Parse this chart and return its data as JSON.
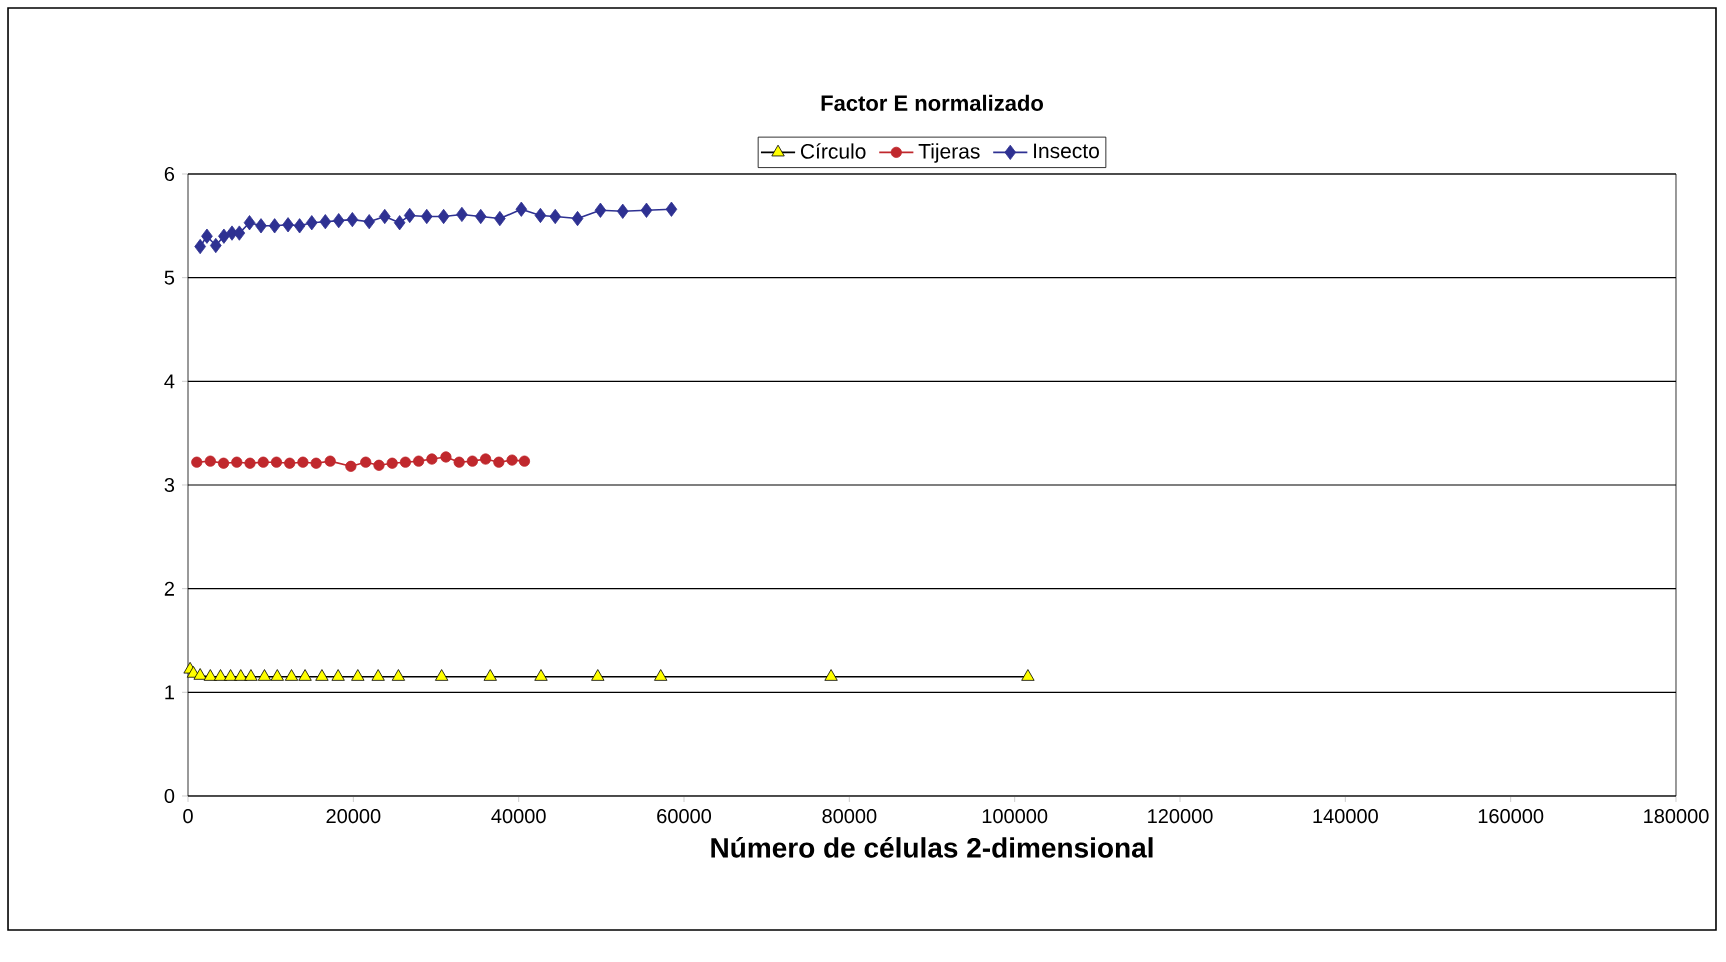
{
  "chart_data": {
    "type": "line",
    "title": "Factor E normalizado",
    "xlabel": "Número de células 2-dimensional",
    "xlim": [
      0,
      180000
    ],
    "xticks": [
      0,
      20000,
      40000,
      60000,
      80000,
      100000,
      120000,
      140000,
      160000,
      180000
    ],
    "ylim": [
      0,
      6
    ],
    "yticks": [
      0,
      1,
      2,
      3,
      4,
      5,
      6
    ],
    "grid": "y",
    "legend": "top",
    "series": [
      {
        "name": "Círculo",
        "color": "#ffff00",
        "marker": "triangle",
        "x": [
          250,
          660,
          1470,
          2700,
          3930,
          5150,
          6380,
          7610,
          9250,
          10800,
          12520,
          14160,
          16200,
          18160,
          20540,
          23000,
          25450,
          30680,
          36560,
          42700,
          49570,
          57180,
          77790,
          101600
        ],
        "values": [
          1.22,
          1.18,
          1.16,
          1.15,
          1.15,
          1.15,
          1.15,
          1.15,
          1.15,
          1.15,
          1.15,
          1.15,
          1.15,
          1.15,
          1.15,
          1.15,
          1.15,
          1.15,
          1.15,
          1.15,
          1.15,
          1.15,
          1.15,
          1.15
        ]
      },
      {
        "name": "Tijeras",
        "color": "#c0282d",
        "marker": "circle",
        "x": [
          1060,
          2700,
          4300,
          5900,
          7500,
          9100,
          10700,
          12300,
          13900,
          15500,
          17200,
          19700,
          21500,
          23100,
          24700,
          26300,
          27900,
          29500,
          31200,
          32800,
          34400,
          36000,
          37600,
          39200,
          40700
        ],
        "values": [
          3.22,
          3.23,
          3.21,
          3.22,
          3.21,
          3.22,
          3.22,
          3.21,
          3.22,
          3.21,
          3.23,
          3.18,
          3.22,
          3.19,
          3.21,
          3.22,
          3.23,
          3.25,
          3.27,
          3.22,
          3.23,
          3.25,
          3.22,
          3.24,
          3.23
        ]
      },
      {
        "name": "Insecto",
        "color": "#2e3192",
        "marker": "diamond",
        "x": [
          1470,
          2290,
          3360,
          4340,
          5320,
          6210,
          7440,
          8830,
          10480,
          12100,
          13500,
          14970,
          16610,
          18230,
          19880,
          21920,
          23800,
          25600,
          26820,
          28880,
          30920,
          33130,
          35410,
          37720,
          40320,
          42630,
          44420,
          47120,
          49890,
          52590,
          55460,
          58480
        ],
        "values": [
          5.3,
          5.4,
          5.31,
          5.4,
          5.43,
          5.43,
          5.53,
          5.5,
          5.5,
          5.51,
          5.5,
          5.53,
          5.54,
          5.55,
          5.56,
          5.54,
          5.59,
          5.53,
          5.6,
          5.59,
          5.59,
          5.61,
          5.59,
          5.57,
          5.66,
          5.6,
          5.59,
          5.57,
          5.65,
          5.64,
          5.65,
          5.66
        ]
      }
    ]
  }
}
